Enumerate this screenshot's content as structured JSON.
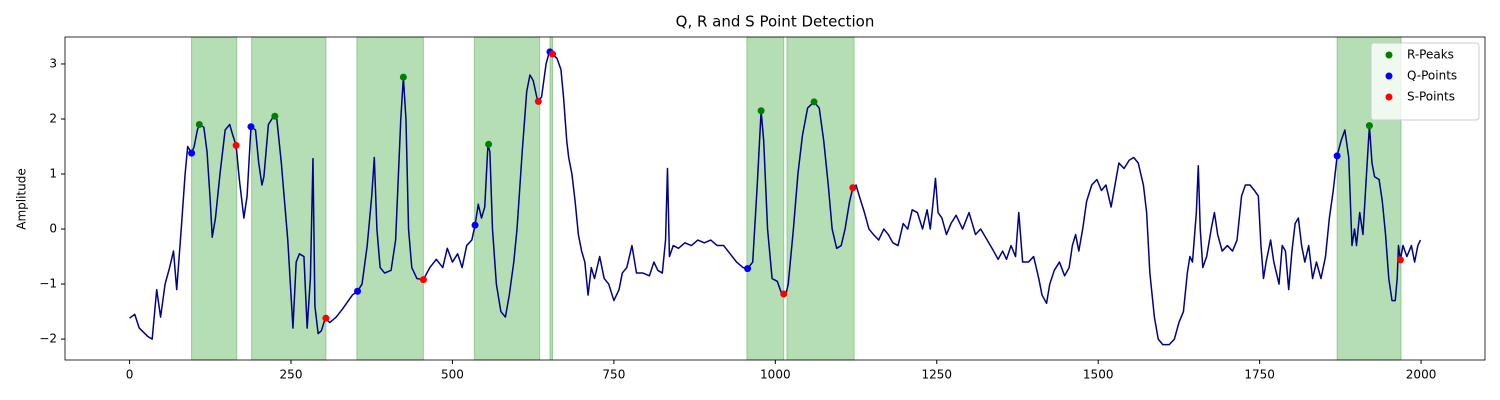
{
  "chart_data": {
    "type": "line",
    "title": "Q, R and S Point Detection",
    "ylabel": "Amplitude",
    "xlim": [
      -100,
      2099
    ],
    "ylim": [
      -2.38,
      3.49
    ],
    "xticks": [
      0,
      250,
      500,
      750,
      1000,
      1250,
      1500,
      1750,
      2000
    ],
    "yticks": [
      {
        "value": -2,
        "label": "−2"
      },
      {
        "value": -1,
        "label": "−1"
      },
      0,
      1,
      2,
      3
    ],
    "legend_loc": "upper right",
    "highlight_color": "#2ca02c",
    "highlight_regions": [
      [
        96,
        166
      ],
      [
        189,
        304
      ],
      [
        352,
        455
      ],
      [
        534,
        635
      ],
      [
        651,
        655
      ],
      [
        956,
        1013
      ],
      [
        1018,
        1122
      ],
      [
        1870,
        1969
      ]
    ],
    "x": [
      0,
      8,
      15,
      28,
      35,
      42,
      48,
      55,
      62,
      68,
      73,
      80,
      86,
      90,
      96,
      100,
      105,
      108,
      115,
      120,
      125,
      128,
      133,
      140,
      148,
      155,
      160,
      165,
      170,
      177,
      182,
      188,
      195,
      200,
      205,
      208,
      215,
      223,
      228,
      235,
      245,
      250,
      253,
      258,
      263,
      270,
      275,
      280,
      284,
      287,
      292,
      297,
      303,
      310,
      320,
      330,
      345,
      353,
      360,
      368,
      375,
      379,
      383,
      388,
      395,
      405,
      412,
      420,
      424,
      428,
      432,
      437,
      445,
      455,
      465,
      475,
      485,
      492,
      500,
      508,
      515,
      522,
      530,
      535,
      540,
      545,
      550,
      555,
      558,
      562,
      568,
      575,
      582,
      588,
      595,
      600,
      608,
      615,
      620,
      625,
      632,
      638,
      645,
      650,
      655,
      662,
      668,
      672,
      677,
      680,
      685,
      690,
      695,
      700,
      705,
      710,
      715,
      720,
      728,
      735,
      742,
      750,
      758,
      763,
      770,
      778,
      785,
      795,
      805,
      812,
      818,
      825,
      830,
      833,
      836,
      842,
      850,
      860,
      870,
      880,
      890,
      900,
      910,
      920,
      930,
      940,
      950,
      957,
      965,
      972,
      978,
      982,
      988,
      995,
      1003,
      1010,
      1016,
      1020,
      1028,
      1035,
      1042,
      1050,
      1060,
      1068,
      1075,
      1082,
      1088,
      1095,
      1102,
      1108,
      1115,
      1120,
      1125,
      1130,
      1138,
      1145,
      1152,
      1160,
      1168,
      1175,
      1182,
      1190,
      1198,
      1205,
      1212,
      1220,
      1228,
      1235,
      1240,
      1244,
      1248,
      1252,
      1258,
      1265,
      1272,
      1280,
      1290,
      1300,
      1310,
      1318,
      1328,
      1338,
      1345,
      1352,
      1358,
      1365,
      1372,
      1377,
      1383,
      1392,
      1400,
      1408,
      1413,
      1420,
      1425,
      1432,
      1440,
      1448,
      1455,
      1460,
      1465,
      1470,
      1476,
      1482,
      1490,
      1498,
      1505,
      1512,
      1520,
      1526,
      1532,
      1540,
      1548,
      1555,
      1562,
      1570,
      1575,
      1580,
      1587,
      1593,
      1600,
      1610,
      1618,
      1625,
      1632,
      1638,
      1642,
      1646,
      1652,
      1655,
      1658,
      1662,
      1668,
      1675,
      1680,
      1685,
      1692,
      1700,
      1708,
      1715,
      1722,
      1728,
      1735,
      1742,
      1748,
      1752,
      1756,
      1760,
      1767,
      1772,
      1780,
      1785,
      1790,
      1795,
      1800,
      1805,
      1810,
      1815,
      1820,
      1826,
      1832,
      1838,
      1845,
      1852,
      1858,
      1864,
      1870,
      1876,
      1882,
      1888,
      1893,
      1897,
      1900,
      1905,
      1910,
      1915,
      1920,
      1924,
      1928,
      1935,
      1940,
      1945,
      1950,
      1955,
      1960,
      1963,
      1965,
      1968,
      1972,
      1978,
      1985,
      1990,
      1995,
      1999
    ],
    "series": [
      {
        "color": "#00008b",
        "values": [
          -1.62,
          -1.55,
          -1.8,
          -1.95,
          -2.0,
          -1.1,
          -1.6,
          -1.0,
          -0.7,
          -0.4,
          -1.1,
          0.0,
          1.0,
          1.5,
          1.38,
          1.5,
          1.8,
          1.9,
          1.85,
          1.4,
          0.5,
          -0.15,
          0.2,
          1.0,
          1.8,
          1.9,
          1.7,
          1.52,
          0.9,
          0.2,
          0.6,
          1.86,
          1.8,
          1.2,
          0.8,
          0.95,
          1.9,
          2.05,
          2.0,
          1.2,
          -0.2,
          -1.2,
          -1.8,
          -0.6,
          -0.45,
          -0.5,
          -1.8,
          -0.9,
          1.28,
          -1.4,
          -1.9,
          -1.85,
          -1.62,
          -1.7,
          -1.6,
          -1.45,
          -1.2,
          -1.13,
          -1.0,
          -0.3,
          0.6,
          1.3,
          0.0,
          -0.7,
          -0.8,
          -0.75,
          -0.2,
          2.0,
          2.76,
          2.0,
          0.0,
          -0.7,
          -0.9,
          -0.92,
          -0.7,
          -0.55,
          -0.7,
          -0.35,
          -0.6,
          -0.45,
          -0.7,
          -0.3,
          -0.2,
          0.07,
          0.45,
          0.2,
          0.4,
          1.54,
          1.4,
          0.0,
          -1.0,
          -1.5,
          -1.6,
          -1.2,
          -0.6,
          0.0,
          1.4,
          2.5,
          2.8,
          2.7,
          2.32,
          2.4,
          3.0,
          3.22,
          3.18,
          3.1,
          2.9,
          2.4,
          1.6,
          1.3,
          1.0,
          0.5,
          -0.1,
          -0.4,
          -0.6,
          -1.2,
          -0.7,
          -0.9,
          -0.5,
          -0.9,
          -1.0,
          -1.3,
          -1.1,
          -0.8,
          -0.7,
          -0.3,
          -0.8,
          -0.8,
          -0.85,
          -0.6,
          -0.75,
          -0.8,
          -0.2,
          1.1,
          -0.5,
          -0.3,
          -0.35,
          -0.25,
          -0.3,
          -0.2,
          -0.25,
          -0.2,
          -0.3,
          -0.3,
          -0.45,
          -0.6,
          -0.7,
          -0.72,
          -0.6,
          0.8,
          2.15,
          1.6,
          0.0,
          -0.9,
          -0.95,
          -1.18,
          -1.2,
          -1.0,
          0.0,
          1.0,
          1.7,
          2.2,
          2.31,
          2.2,
          1.6,
          0.8,
          0.0,
          -0.35,
          -0.3,
          0.0,
          0.5,
          0.75,
          0.8,
          0.6,
          0.3,
          0.0,
          -0.1,
          -0.2,
          0.0,
          -0.1,
          -0.25,
          -0.3,
          0.1,
          0.0,
          0.35,
          0.3,
          0.0,
          0.35,
          0.0,
          0.45,
          0.92,
          0.3,
          0.2,
          -0.1,
          0.1,
          0.25,
          0.0,
          0.3,
          -0.1,
          0.0,
          -0.2,
          -0.4,
          -0.55,
          -0.4,
          -0.55,
          -0.3,
          -0.5,
          0.3,
          -0.6,
          -0.6,
          -0.5,
          -0.9,
          -1.2,
          -1.35,
          -1.0,
          -0.75,
          -0.6,
          -0.85,
          -0.7,
          -0.3,
          -0.1,
          -0.4,
          0.0,
          0.5,
          0.8,
          0.9,
          0.7,
          0.8,
          0.4,
          0.8,
          1.2,
          1.1,
          1.25,
          1.3,
          1.2,
          0.8,
          0.3,
          -0.8,
          -1.6,
          -2.0,
          -2.1,
          -2.1,
          -2.0,
          -1.7,
          -1.5,
          -0.8,
          -0.5,
          -0.6,
          0.3,
          1.15,
          0.0,
          -0.7,
          -0.5,
          0.0,
          0.3,
          -0.1,
          -0.4,
          -0.3,
          -0.4,
          -0.2,
          0.6,
          0.8,
          0.8,
          0.7,
          0.6,
          -0.3,
          -0.9,
          -0.6,
          -0.2,
          -0.6,
          -1.0,
          -0.3,
          -0.4,
          -1.1,
          -0.4,
          0.1,
          0.2,
          -0.3,
          -0.6,
          -0.3,
          -0.9,
          -0.6,
          -0.9,
          -0.5,
          0.2,
          0.7,
          1.33,
          1.6,
          1.8,
          1.3,
          -0.3,
          0.0,
          -0.3,
          0.3,
          -0.1,
          0.9,
          1.88,
          1.2,
          0.95,
          0.9,
          0.5,
          -0.1,
          -0.9,
          -1.3,
          -1.3,
          -0.9,
          -0.3,
          -0.56,
          -0.3,
          -0.5,
          -0.3,
          -0.6,
          -0.3,
          -0.2
        ]
      }
    ],
    "markers": [
      {
        "name": "R-Peaks",
        "color": "#008000",
        "x": [
          108,
          225,
          424,
          556,
          978,
          1060,
          1920
        ],
        "values": [
          1.9,
          2.05,
          2.76,
          1.54,
          2.15,
          2.31,
          1.88
        ]
      },
      {
        "name": "Q-Points",
        "color": "#0000ff",
        "x": [
          96,
          188,
          353,
          535,
          651,
          957,
          1870
        ],
        "values": [
          1.38,
          1.86,
          -1.13,
          0.07,
          3.22,
          -0.72,
          1.33
        ]
      },
      {
        "name": "S-Points",
        "color": "#ff0000",
        "x": [
          165,
          304,
          455,
          633,
          655,
          1013,
          1120,
          1968
        ],
        "values": [
          1.52,
          -1.62,
          -0.92,
          2.32,
          3.18,
          -1.18,
          0.75,
          -0.56
        ]
      }
    ]
  }
}
